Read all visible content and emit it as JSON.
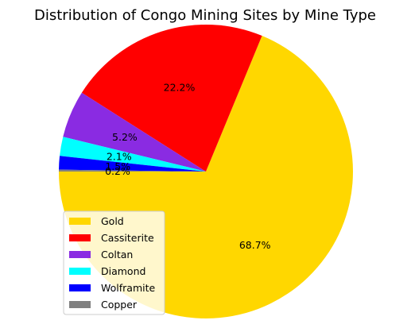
{
  "chart_data": {
    "type": "pie",
    "title": "Distribution of Congo Mining Sites by Mine Type",
    "labels": [
      "Gold",
      "Cassiterite",
      "Coltan",
      "Diamond",
      "Wolframite",
      "Copper"
    ],
    "values": [
      68.7,
      22.2,
      5.2,
      2.1,
      1.5,
      0.2
    ],
    "autopct_labels": [
      "68.7%",
      "22.2%",
      "5.2%",
      "2.1%",
      "1.5%",
      "0.2%"
    ],
    "colors": [
      "#ffd700",
      "#ff0000",
      "#8a2be2",
      "#00ffff",
      "#0000ff",
      "#808080"
    ],
    "start_angle_deg": 180,
    "direction": "counterclockwise",
    "legend_position": "lower-left"
  }
}
